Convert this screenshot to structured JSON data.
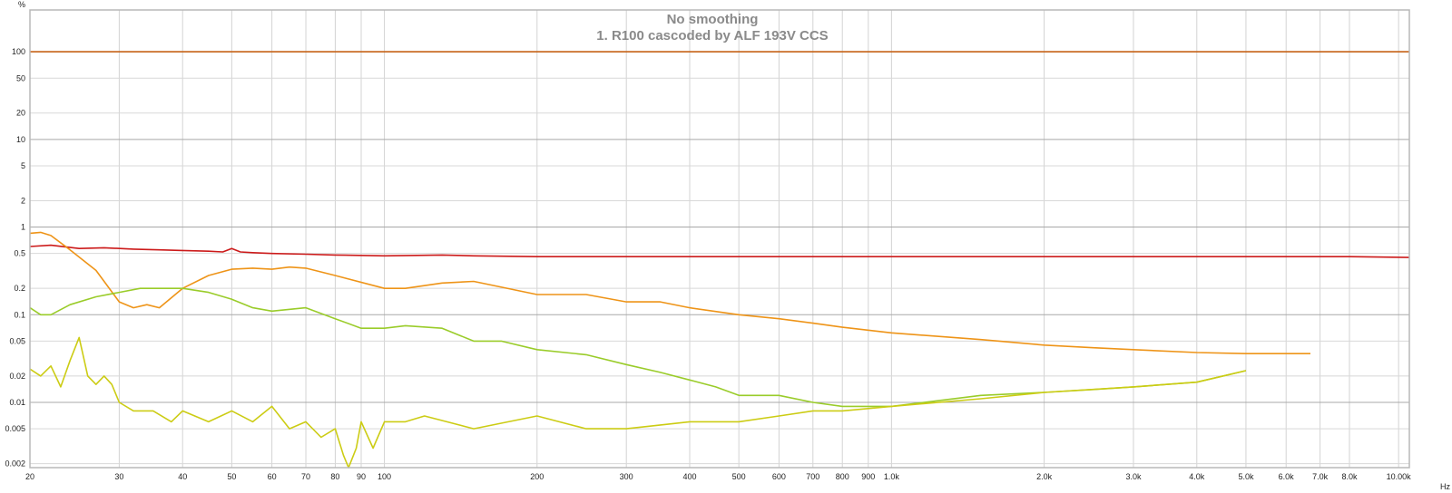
{
  "chart_data": {
    "type": "line",
    "title": "No smoothing",
    "subtitle": "1. R100 cascoded by ALF 193V CCS",
    "y_unit": "%",
    "x_unit": "Hz",
    "x_scale": "log",
    "y_scale": "log",
    "xlim": [
      20,
      10500
    ],
    "ylim": [
      0.0018,
      300
    ],
    "grid": true,
    "x_ticks": [
      {
        "value": 20,
        "label": "20"
      },
      {
        "value": 30,
        "label": "30"
      },
      {
        "value": 40,
        "label": "40"
      },
      {
        "value": 50,
        "label": "50"
      },
      {
        "value": 60,
        "label": "60"
      },
      {
        "value": 70,
        "label": "70"
      },
      {
        "value": 80,
        "label": "80"
      },
      {
        "value": 90,
        "label": "90"
      },
      {
        "value": 100,
        "label": "100"
      },
      {
        "value": 200,
        "label": "200"
      },
      {
        "value": 300,
        "label": "300"
      },
      {
        "value": 400,
        "label": "400"
      },
      {
        "value": 500,
        "label": "500"
      },
      {
        "value": 600,
        "label": "600"
      },
      {
        "value": 700,
        "label": "700"
      },
      {
        "value": 800,
        "label": "800"
      },
      {
        "value": 900,
        "label": "900"
      },
      {
        "value": 1000,
        "label": "1.0k"
      },
      {
        "value": 2000,
        "label": "2.0k"
      },
      {
        "value": 3000,
        "label": "3.0k"
      },
      {
        "value": 4000,
        "label": "4.0k"
      },
      {
        "value": 5000,
        "label": "5.0k"
      },
      {
        "value": 6000,
        "label": "6.0k"
      },
      {
        "value": 7000,
        "label": "7.0k"
      },
      {
        "value": 8000,
        "label": "8.0k"
      },
      {
        "value": 10000,
        "label": "10.00k"
      }
    ],
    "y_ticks": [
      {
        "value": 100,
        "label": "100"
      },
      {
        "value": 50,
        "label": "50"
      },
      {
        "value": 20,
        "label": "20"
      },
      {
        "value": 10,
        "label": "10"
      },
      {
        "value": 5,
        "label": "5"
      },
      {
        "value": 2,
        "label": "2"
      },
      {
        "value": 1,
        "label": "1"
      },
      {
        "value": 0.5,
        "label": "0.5"
      },
      {
        "value": 0.2,
        "label": "0.2"
      },
      {
        "value": 0.1,
        "label": "0.1"
      },
      {
        "value": 0.05,
        "label": "0.05"
      },
      {
        "value": 0.02,
        "label": "0.02"
      },
      {
        "value": 0.01,
        "label": "0.01"
      },
      {
        "value": 0.005,
        "label": "0.005"
      },
      {
        "value": 0.002,
        "label": "0.002"
      }
    ],
    "series": [
      {
        "color": "#c86418",
        "x": [
          20,
          10500
        ],
        "values": [
          100,
          100
        ]
      },
      {
        "color": "#cc1a1a",
        "x": [
          20,
          22,
          25,
          28,
          32,
          36,
          40,
          45,
          48,
          50,
          52,
          55,
          60,
          70,
          80,
          100,
          130,
          150,
          200,
          300,
          500,
          1000,
          2000,
          3000,
          5000,
          8000,
          10500
        ],
        "values": [
          0.6,
          0.62,
          0.57,
          0.58,
          0.56,
          0.55,
          0.54,
          0.53,
          0.52,
          0.57,
          0.52,
          0.51,
          0.5,
          0.49,
          0.48,
          0.47,
          0.48,
          0.47,
          0.46,
          0.46,
          0.46,
          0.46,
          0.46,
          0.46,
          0.46,
          0.46,
          0.45
        ]
      },
      {
        "color": "#ee9418",
        "x": [
          20,
          21,
          22,
          24,
          27,
          30,
          32,
          34,
          36,
          40,
          45,
          50,
          55,
          60,
          65,
          70,
          80,
          100,
          110,
          130,
          150,
          200,
          250,
          300,
          350,
          400,
          500,
          600,
          700,
          800,
          1000,
          1500,
          2000,
          2500,
          3000,
          4000,
          5000,
          6000,
          6700
        ],
        "values": [
          0.85,
          0.87,
          0.8,
          0.55,
          0.32,
          0.14,
          0.12,
          0.13,
          0.12,
          0.2,
          0.28,
          0.33,
          0.34,
          0.33,
          0.35,
          0.34,
          0.28,
          0.2,
          0.2,
          0.23,
          0.24,
          0.17,
          0.17,
          0.14,
          0.14,
          0.12,
          0.1,
          0.09,
          0.08,
          0.072,
          0.062,
          0.052,
          0.045,
          0.042,
          0.04,
          0.037,
          0.036,
          0.036,
          0.036
        ]
      },
      {
        "color": "#9acc2a",
        "x": [
          20,
          21,
          22,
          24,
          27,
          30,
          33,
          36,
          40,
          45,
          50,
          55,
          60,
          70,
          80,
          90,
          100,
          110,
          130,
          150,
          170,
          200,
          250,
          300,
          350,
          400,
          450,
          500,
          600,
          700,
          800,
          1000,
          1500,
          2000,
          2500,
          3000,
          4000,
          5000
        ],
        "values": [
          0.12,
          0.1,
          0.1,
          0.13,
          0.16,
          0.18,
          0.2,
          0.2,
          0.2,
          0.18,
          0.15,
          0.12,
          0.11,
          0.12,
          0.09,
          0.07,
          0.07,
          0.075,
          0.07,
          0.05,
          0.05,
          0.04,
          0.035,
          0.027,
          0.022,
          0.018,
          0.015,
          0.012,
          0.012,
          0.01,
          0.009,
          0.009,
          0.012,
          0.013,
          0.014,
          0.015,
          0.017,
          0.023
        ]
      },
      {
        "color": "#cccc14",
        "x": [
          20,
          21,
          22,
          23,
          24,
          25,
          26,
          27,
          28,
          29,
          30,
          32,
          35,
          38,
          40,
          45,
          50,
          55,
          60,
          65,
          70,
          75,
          80,
          83,
          85,
          88,
          90,
          95,
          100,
          110,
          120,
          150,
          200,
          250,
          300,
          400,
          500,
          600,
          700,
          800,
          1000,
          1500,
          2000,
          3000,
          4000,
          5000
        ],
        "values": [
          0.024,
          0.02,
          0.026,
          0.015,
          0.03,
          0.055,
          0.02,
          0.016,
          0.02,
          0.016,
          0.01,
          0.008,
          0.008,
          0.006,
          0.008,
          0.006,
          0.008,
          0.006,
          0.009,
          0.005,
          0.006,
          0.004,
          0.005,
          0.0025,
          0.0017,
          0.003,
          0.006,
          0.003,
          0.006,
          0.006,
          0.007,
          0.005,
          0.007,
          0.005,
          0.005,
          0.006,
          0.006,
          0.007,
          0.008,
          0.008,
          0.009,
          0.011,
          0.013,
          0.015,
          0.017,
          0.023
        ]
      }
    ]
  }
}
